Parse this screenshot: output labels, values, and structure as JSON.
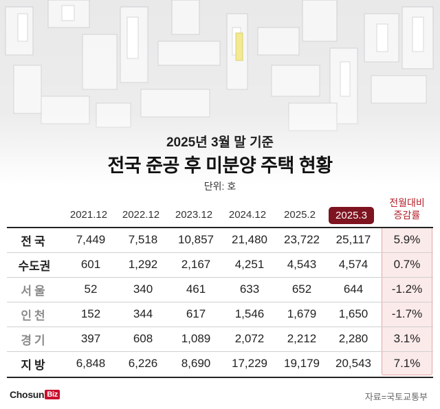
{
  "subtitle": "2025년 3월 말 기준",
  "title": "전국 준공 후 미분양 주택 현황",
  "unit": "단위: 호",
  "chart_data": {
    "type": "table",
    "columns": [
      "2021.12",
      "2022.12",
      "2023.12",
      "2024.12",
      "2025.2",
      "2025.3"
    ],
    "highlight_column": "2025.3",
    "change_header_line1": "전월대비",
    "change_header_line2": "증감률",
    "rows": [
      {
        "label": "전국",
        "values": [
          "7,449",
          "7,518",
          "10,857",
          "21,480",
          "23,722",
          "25,117"
        ],
        "change": "5.9%"
      },
      {
        "label": "수도권",
        "values": [
          "601",
          "1,292",
          "2,167",
          "4,251",
          "4,543",
          "4,574"
        ],
        "change": "0.7%"
      },
      {
        "label": "서울",
        "values": [
          "52",
          "340",
          "461",
          "633",
          "652",
          "644"
        ],
        "change": "-1.2%"
      },
      {
        "label": "인천",
        "values": [
          "152",
          "344",
          "617",
          "1,546",
          "1,679",
          "1,650"
        ],
        "change": "-1.7%"
      },
      {
        "label": "경기",
        "values": [
          "397",
          "608",
          "1,089",
          "2,072",
          "2,212",
          "2,280"
        ],
        "change": "3.1%"
      },
      {
        "label": "지방",
        "values": [
          "6,848",
          "6,226",
          "8,690",
          "17,229",
          "19,179",
          "20,543"
        ],
        "change": "7.1%"
      }
    ],
    "colors": {
      "highlight": "#7d1420",
      "change_text": "#b3202a",
      "change_bg": "#fbeaea",
      "sub_row": "#8a8a8a"
    }
  },
  "logo": {
    "main": "Chosun",
    "badge": "Biz"
  },
  "source": "자료=국토교통부"
}
